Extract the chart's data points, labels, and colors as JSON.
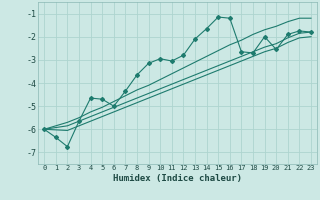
{
  "xlabel": "Humidex (Indice chaleur)",
  "bg_color": "#cce8e4",
  "grid_color": "#aed4cf",
  "line_color": "#1e7b6e",
  "xlim": [
    -0.5,
    23.5
  ],
  "ylim": [
    -7.5,
    -0.5
  ],
  "xticks": [
    0,
    1,
    2,
    3,
    4,
    5,
    6,
    7,
    8,
    9,
    10,
    11,
    12,
    13,
    14,
    15,
    16,
    17,
    18,
    19,
    20,
    21,
    22,
    23
  ],
  "yticks": [
    -7,
    -6,
    -5,
    -4,
    -3,
    -2,
    -1
  ],
  "series1_x": [
    0,
    1,
    2,
    3,
    4,
    5,
    6,
    7,
    8,
    9,
    10,
    11,
    12,
    13,
    14,
    15,
    16,
    17,
    18,
    19,
    20,
    21,
    22,
    23
  ],
  "series1_y": [
    -6.0,
    -6.35,
    -6.75,
    -5.65,
    -4.65,
    -4.7,
    -5.0,
    -4.35,
    -3.65,
    -3.15,
    -2.95,
    -3.05,
    -2.8,
    -2.1,
    -1.65,
    -1.15,
    -1.2,
    -2.65,
    -2.7,
    -2.0,
    -2.55,
    -1.9,
    -1.75,
    -1.8
  ],
  "series2_x": [
    0,
    2,
    3,
    4,
    5,
    6,
    7,
    8,
    9,
    10,
    11,
    12,
    13,
    14,
    15,
    16,
    17,
    18,
    19,
    20,
    21,
    22,
    23
  ],
  "series2_y": [
    -6.0,
    -5.7,
    -5.5,
    -5.25,
    -5.05,
    -4.8,
    -4.55,
    -4.3,
    -4.1,
    -3.85,
    -3.6,
    -3.35,
    -3.1,
    -2.85,
    -2.6,
    -2.35,
    -2.15,
    -1.9,
    -1.7,
    -1.55,
    -1.35,
    -1.2,
    -1.2
  ],
  "series3_x": [
    0,
    2,
    3,
    4,
    5,
    6,
    7,
    8,
    9,
    10,
    11,
    12,
    13,
    14,
    15,
    16,
    17,
    18,
    19,
    20,
    21,
    22,
    23
  ],
  "series3_y": [
    -6.0,
    -5.85,
    -5.65,
    -5.45,
    -5.25,
    -5.05,
    -4.85,
    -4.65,
    -4.45,
    -4.25,
    -4.05,
    -3.85,
    -3.65,
    -3.45,
    -3.25,
    -3.05,
    -2.85,
    -2.65,
    -2.45,
    -2.3,
    -2.05,
    -1.85,
    -1.8
  ],
  "series4_x": [
    0,
    2,
    3,
    4,
    5,
    6,
    7,
    8,
    9,
    10,
    11,
    12,
    13,
    14,
    15,
    16,
    17,
    18,
    19,
    20,
    21,
    22,
    23
  ],
  "series4_y": [
    -6.0,
    -6.05,
    -5.85,
    -5.65,
    -5.45,
    -5.25,
    -5.05,
    -4.85,
    -4.65,
    -4.45,
    -4.25,
    -4.05,
    -3.85,
    -3.65,
    -3.45,
    -3.25,
    -3.05,
    -2.85,
    -2.65,
    -2.5,
    -2.25,
    -2.05,
    -2.0
  ]
}
